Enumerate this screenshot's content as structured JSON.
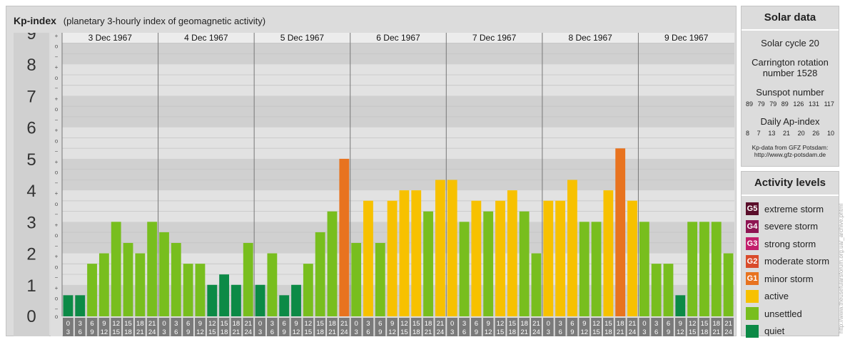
{
  "header": {
    "title": "Kp-index",
    "subtitle": "(planetary 3-hourly index of geomagnetic activity)"
  },
  "chart_data": {
    "type": "bar",
    "ylim": [
      0,
      9
    ],
    "y_ticks": [
      "0",
      "1",
      "2",
      "3",
      "4",
      "5",
      "6",
      "7",
      "8",
      "9"
    ],
    "minor_marks": [
      "+",
      "o",
      "−"
    ],
    "days": [
      "3 Dec 1967",
      "4 Dec 1967",
      "5 Dec 1967",
      "6 Dec 1967",
      "7 Dec 1967",
      "8 Dec 1967",
      "9 Dec 1967"
    ],
    "interval_starts": [
      "0",
      "3",
      "6",
      "9",
      "12",
      "15",
      "18",
      "21"
    ],
    "interval_ends": [
      "3",
      "6",
      "9",
      "12",
      "15",
      "18",
      "21",
      "24"
    ],
    "values": [
      0.67,
      0.67,
      1.67,
      2.0,
      3.0,
      2.33,
      2.0,
      3.0,
      2.67,
      2.33,
      1.67,
      1.67,
      1.0,
      1.33,
      1.0,
      2.33,
      1.0,
      2.0,
      0.67,
      1.0,
      1.67,
      2.67,
      3.33,
      5.0,
      2.33,
      3.67,
      2.33,
      3.67,
      4.0,
      4.0,
      3.33,
      4.33,
      4.33,
      3.0,
      3.67,
      3.33,
      3.67,
      4.0,
      3.33,
      2.0,
      3.67,
      3.67,
      4.33,
      3.0,
      3.0,
      4.0,
      5.33,
      3.67,
      3.0,
      1.67,
      1.67,
      0.67,
      3.0,
      3.0,
      3.0,
      2.0
    ],
    "colors": {
      "quiet": "#0c8a46",
      "unsettled": "#78be1e",
      "active": "#f7c100",
      "minor": "#e8731f",
      "moderate": "#d94b2a",
      "strong": "#c21e6b",
      "severe": "#8e1452",
      "extreme": "#5a0e2a"
    }
  },
  "solar": {
    "title": "Solar data",
    "cycle": "Solar cycle 20",
    "carrington_line1": "Carrington rotation",
    "carrington_line2": "number 1528",
    "sunspot_label": "Sunspot number",
    "sunspot_values": [
      "89",
      "79",
      "79",
      "89",
      "126",
      "131",
      "117"
    ],
    "ap_label": "Daily Ap-index",
    "ap_values": [
      "8",
      "7",
      "13",
      "21",
      "20",
      "26",
      "10"
    ],
    "source_line1": "Kp-data from GFZ Potsdam:",
    "source_line2": "http://www.gfz-potsdam.de"
  },
  "activity": {
    "title": "Activity levels",
    "items": [
      {
        "badge": "G5",
        "label": "extreme storm",
        "color": "#5a0e2a"
      },
      {
        "badge": "G4",
        "label": "severe storm",
        "color": "#8e1452"
      },
      {
        "badge": "G3",
        "label": "strong storm",
        "color": "#c21e6b"
      },
      {
        "badge": "G2",
        "label": "moderate storm",
        "color": "#d94b2a"
      },
      {
        "badge": "G1",
        "label": "minor storm",
        "color": "#e8731f"
      },
      {
        "badge": "",
        "label": "active",
        "color": "#f7c100"
      },
      {
        "badge": "",
        "label": "unsettled",
        "color": "#78be1e"
      },
      {
        "badge": "",
        "label": "quiet",
        "color": "#0c8a46"
      }
    ]
  },
  "watermark": "http://www.theusefularsforum.org.ua/_archive.phtml"
}
